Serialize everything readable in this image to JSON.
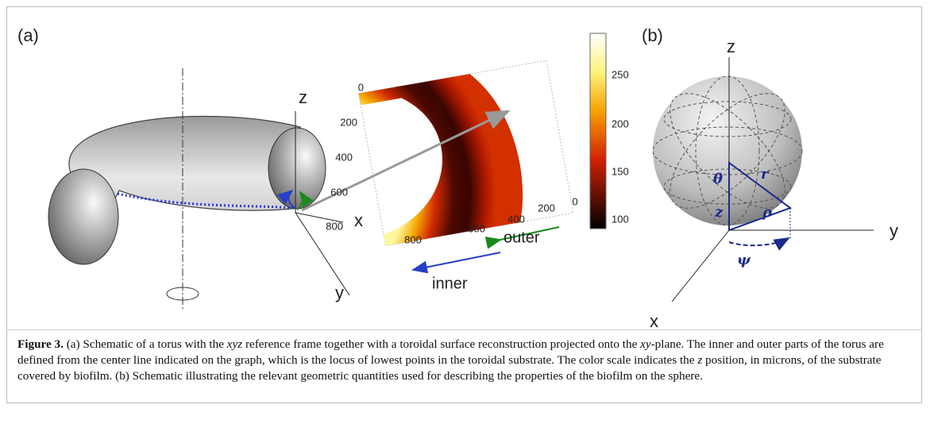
{
  "panel_a": {
    "label": "(a)",
    "axes": {
      "z": "z",
      "x": "x",
      "y": "y"
    },
    "heatmap": {
      "left_ticks": [
        "0",
        "200",
        "400",
        "600",
        "800"
      ],
      "bottom_ticks": [
        "800",
        "600",
        "400",
        "200",
        "0"
      ],
      "colorbar_ticks": [
        "250",
        "200",
        "150",
        "100"
      ],
      "inner": "inner",
      "outer": "outer"
    }
  },
  "panel_b": {
    "label": "(b)",
    "axes": {
      "z": "z",
      "y": "y",
      "x": "x"
    },
    "symbols": {
      "theta": "θ",
      "r": "r",
      "z": "z",
      "rho": "ρ",
      "psi": "ψ"
    }
  },
  "caption": {
    "parts": [
      "Figure 3.",
      " (a) Schematic of a torus with the ",
      "xyz",
      " reference frame together with a toroidal surface reconstruction projected onto the ",
      "xy",
      "-plane. The inner and outer parts of the torus are defined from the center line indicated on the graph, which is the locus of lowest points in the toroidal substrate. The color scale indicates the ",
      "z",
      " position, in microns, of the substrate covered by biofilm. (b) Schematic illustrating the relevant geometric quantities used for describing the properties of the biofilm on the sphere."
    ]
  }
}
